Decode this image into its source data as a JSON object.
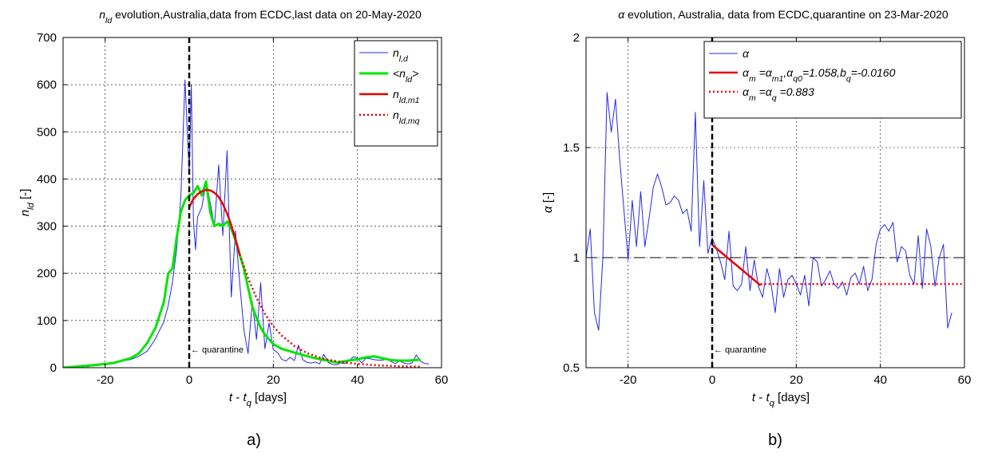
{
  "chart_data": [
    {
      "type": "line",
      "caption": "a)",
      "title": {
        "sym": "n",
        "sub": "ld",
        "rest": " evolution,Australia,data from ECDC,last data on 20-May-2020"
      },
      "xlabel": {
        "a": "t",
        "mid": " - ",
        "b": "t",
        "sub": "q",
        "rest": " [days]"
      },
      "ylabel": {
        "sym": "n",
        "sub": "ld",
        "rest": " [-]"
      },
      "xlim": [
        -30,
        60
      ],
      "ylim": [
        0,
        700
      ],
      "xticks": [
        -20,
        0,
        20,
        40,
        60
      ],
      "yticks": [
        0,
        100,
        200,
        300,
        400,
        500,
        600,
        700
      ],
      "grid": true,
      "legend_position": "top-right",
      "annotation": "← quarantine",
      "quarantine_x": 0,
      "series": [
        {
          "key": "raw",
          "legend": {
            "sym": "n",
            "sub": "l,d"
          },
          "color": "#2828e6",
          "style": "solid",
          "width": 1,
          "x": [
            -30,
            -28,
            -26,
            -24,
            -22,
            -20,
            -18,
            -16,
            -14,
            -12,
            -10,
            -9,
            -8,
            -7,
            -6,
            -5,
            -4,
            -3,
            -2,
            -1,
            0,
            0.5,
            1,
            1.5,
            2,
            3,
            4,
            5,
            6,
            7,
            8,
            9,
            10,
            11,
            12,
            13,
            14,
            15,
            16,
            17,
            18,
            19,
            20,
            21,
            22,
            23,
            24,
            25,
            26,
            27,
            28,
            29,
            30,
            31,
            32,
            33,
            34,
            35,
            36,
            37,
            38,
            39,
            40,
            41,
            42,
            43,
            44,
            45,
            46,
            47,
            48,
            49,
            50,
            51,
            52,
            53,
            54,
            55,
            56,
            57
          ],
          "y": [
            0,
            1,
            3,
            2,
            8,
            6,
            10,
            14,
            17,
            24,
            35,
            48,
            62,
            80,
            98,
            132,
            180,
            250,
            360,
            610,
            410,
            600,
            310,
            250,
            320,
            340,
            395,
            350,
            300,
            430,
            280,
            460,
            150,
            290,
            180,
            80,
            30,
            140,
            60,
            180,
            40,
            95,
            38,
            32,
            18,
            14,
            22,
            15,
            48,
            17,
            11,
            10,
            12,
            8,
            28,
            12,
            7,
            6,
            10,
            9,
            14,
            23,
            21,
            10,
            20,
            19,
            17,
            16,
            16,
            19,
            13,
            9,
            14,
            10,
            8,
            10,
            27,
            14,
            9,
            8
          ]
        },
        {
          "key": "avg",
          "legend": {
            "sym": "<n",
            "sub": "ld",
            "tail": ">"
          },
          "color": "#00e600",
          "style": "solid",
          "width": 3,
          "x": [
            -30,
            -26,
            -22,
            -18,
            -14,
            -12,
            -10,
            -8,
            -6,
            -5,
            -4,
            -3,
            -2,
            -1,
            0,
            1,
            2,
            3,
            4,
            5,
            6,
            7,
            8,
            9,
            10,
            11,
            12,
            13,
            14,
            15,
            16,
            17,
            18,
            20,
            22,
            25,
            30,
            35,
            40,
            42,
            44,
            46,
            48,
            50,
            52,
            55
          ],
          "y": [
            0,
            3,
            6,
            10,
            20,
            30,
            52,
            85,
            140,
            200,
            210,
            275,
            330,
            355,
            365,
            370,
            385,
            365,
            395,
            330,
            300,
            305,
            300,
            310,
            295,
            270,
            240,
            210,
            170,
            130,
            105,
            85,
            70,
            50,
            40,
            32,
            20,
            11,
            18,
            22,
            24,
            20,
            16,
            15,
            15,
            17
          ]
        },
        {
          "key": "m1",
          "legend": {
            "sym": "n",
            "sub": "ld,m1"
          },
          "color": "#e60000",
          "style": "solid",
          "width": 2.5,
          "x": [
            0,
            1,
            2,
            3,
            4,
            5,
            6,
            7,
            8,
            9,
            10,
            11,
            12
          ],
          "y": [
            340,
            358,
            368,
            374,
            377,
            376,
            371,
            362,
            347,
            327,
            302,
            273,
            240
          ]
        },
        {
          "key": "mq",
          "legend": {
            "sym": "n",
            "sub": "ld,mq"
          },
          "color": "#e60000",
          "style": "dotted",
          "width": 2.5,
          "x": [
            12,
            14,
            16,
            18,
            20,
            22,
            25,
            28,
            32,
            36,
            40,
            45,
            50,
            55
          ],
          "y": [
            240,
            190,
            148,
            114,
            88,
            68,
            46,
            31,
            19,
            12,
            8,
            5,
            3,
            2
          ]
        }
      ]
    },
    {
      "type": "line",
      "caption": "b)",
      "title": {
        "sym": "α",
        "rest": " evolution, Australia, data from ECDC,quarantine on 23-Mar-2020"
      },
      "xlabel": {
        "a": "t",
        "mid": " - ",
        "b": "t",
        "sub": "q",
        "rest": " [days]"
      },
      "ylabel": {
        "sym": "α",
        "sub": "",
        "rest": " [-]"
      },
      "xlim": [
        -30,
        60
      ],
      "ylim": [
        0.5,
        2
      ],
      "xticks": [
        -20,
        0,
        20,
        40,
        60
      ],
      "yticks": [
        0.5,
        1,
        1.5,
        2
      ],
      "ytick_labels": [
        "0.5",
        "1",
        "1.5",
        "2"
      ],
      "grid": true,
      "legend_position": "top-right",
      "annotation": "← quarantine",
      "quarantine_x": 0,
      "reference_y": 1,
      "series": [
        {
          "key": "alpha",
          "legend": {
            "sym": "α"
          },
          "color": "#2828e6",
          "style": "solid",
          "width": 1,
          "x": [
            -30,
            -29,
            -28,
            -27,
            -26,
            -25,
            -24,
            -23,
            -22,
            -21,
            -20,
            -19,
            -18,
            -17,
            -16,
            -15,
            -14,
            -13,
            -12,
            -11,
            -10,
            -9,
            -8,
            -7,
            -6,
            -5,
            -4,
            -3,
            -2,
            -1,
            0,
            1,
            2,
            3,
            4,
            5,
            6,
            7,
            8,
            9,
            10,
            11,
            12,
            13,
            14,
            15,
            16,
            17,
            18,
            19,
            20,
            21,
            22,
            23,
            24,
            25,
            26,
            27,
            28,
            29,
            30,
            31,
            32,
            33,
            34,
            35,
            36,
            37,
            38,
            39,
            40,
            41,
            42,
            43,
            44,
            45,
            46,
            47,
            48,
            49,
            50,
            51,
            52,
            53,
            54,
            55,
            56,
            57
          ],
          "y": [
            1.0,
            1.13,
            0.75,
            0.67,
            1.0,
            1.75,
            1.57,
            1.72,
            1.45,
            1.22,
            0.99,
            1.26,
            1.05,
            1.3,
            1.05,
            1.18,
            1.32,
            1.38,
            1.32,
            1.24,
            1.25,
            1.28,
            1.26,
            1.2,
            1.22,
            1.12,
            1.66,
            1.05,
            1.35,
            1.02,
            1.09,
            1.04,
            0.98,
            0.9,
            1.12,
            0.87,
            0.85,
            0.88,
            1.05,
            0.85,
            0.99,
            0.87,
            0.82,
            0.95,
            0.88,
            0.75,
            0.95,
            0.82,
            0.9,
            0.92,
            0.88,
            0.83,
            0.92,
            0.78,
            1.0,
            0.98,
            0.87,
            0.9,
            0.94,
            0.88,
            0.86,
            0.89,
            0.83,
            0.91,
            0.93,
            0.88,
            0.96,
            0.85,
            0.9,
            1.06,
            1.13,
            1.15,
            1.12,
            1.16,
            0.98,
            1.05,
            1.03,
            0.92,
            0.88,
            1.1,
            0.86,
            1.13,
            1.05,
            0.87,
            1.0,
            1.06,
            0.68,
            0.75
          ]
        },
        {
          "key": "m1",
          "legend": {
            "parts": [
              [
                "α",
                ""
              ],
              [
                "m",
                " ="
              ],
              [
                "α",
                ""
              ],
              [
                "m1",
                ","
              ],
              [
                "α",
                ""
              ],
              [
                "q0",
                "=1.058,"
              ],
              [
                "b",
                ""
              ],
              [
                "q",
                "=-0.0160"
              ]
            ]
          },
          "color": "#e60000",
          "style": "solid",
          "width": 2.5,
          "x": [
            0,
            11.5
          ],
          "y": [
            1.058,
            0.874
          ]
        },
        {
          "key": "mq",
          "legend": {
            "parts": [
              [
                "α",
                ""
              ],
              [
                "m",
                " ="
              ],
              [
                "α",
                ""
              ],
              [
                "q",
                " =0.883"
              ]
            ]
          },
          "color": "#e60000",
          "style": "dotted",
          "width": 2.5,
          "x": [
            11.5,
            60
          ],
          "y": [
            0.88,
            0.88
          ]
        }
      ]
    }
  ]
}
